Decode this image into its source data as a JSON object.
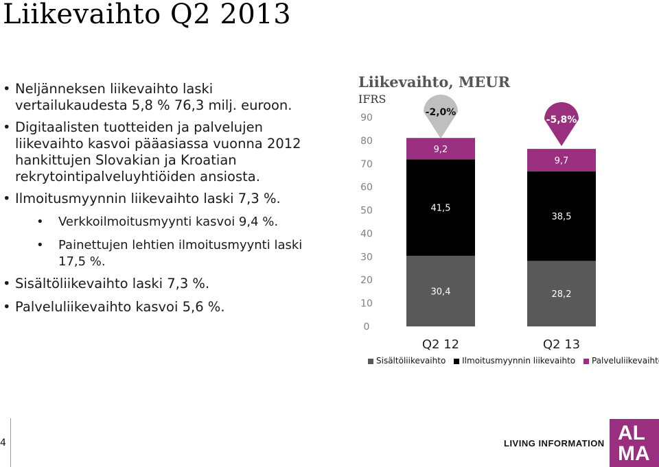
{
  "page": {
    "title": "Liikevaihto Q2 2013",
    "page_number": "4",
    "brand_text": "LIVING INFORMATION",
    "logo_text": [
      "AL",
      "MA"
    ]
  },
  "bullets": [
    {
      "level": 1,
      "text": "Neljänneksen liikevaihto laski vertailukaudesta 5,8 % 76,3 milj. euroon."
    },
    {
      "level": 1,
      "text": "Digitaalisten tuotteiden ja palvelujen liikevaihto kasvoi pääasiassa vuonna 2012 hankittujen Slovakian ja Kroatian rekrytointipalveluyhtiöiden ansiosta."
    },
    {
      "level": 1,
      "text": "Ilmoitusmyynnin liikevaihto laski 7,3 %."
    },
    {
      "level": 2,
      "text": "Verkkoilmoitusmyynti kasvoi 9,4 %."
    },
    {
      "level": 2,
      "text": "Painettujen lehtien ilmoitusmyynti laski 17,5 %."
    },
    {
      "level": 1,
      "text": "Sisältöliikevaihto laski 7,3 %."
    },
    {
      "level": 1,
      "text": "Palveluliikevaihto kasvoi 5,6 %."
    }
  ],
  "chart_data": {
    "type": "bar",
    "stacked": true,
    "title": "Liikevaihto, MEUR",
    "subtitle": "IFRS",
    "categories": [
      "Q2 12",
      "Q2 13"
    ],
    "series": [
      {
        "name": "Sisältöliikevaihto",
        "values": [
          30.4,
          28.2
        ],
        "labels": [
          "30,4",
          "28,2"
        ],
        "color": "#595959"
      },
      {
        "name": "Ilmoitusmyynnin liikevaihto",
        "values": [
          41.5,
          38.5
        ],
        "labels": [
          "41,5",
          "38,5"
        ],
        "color": "#000000"
      },
      {
        "name": "Palveluliikevaihto",
        "values": [
          9.2,
          9.7
        ],
        "labels": [
          "9,2",
          "9,7"
        ],
        "color": "#9b2f7f"
      }
    ],
    "yticks": [
      "0",
      "10",
      "20",
      "30",
      "40",
      "50",
      "60",
      "70",
      "80",
      "90"
    ],
    "ylim": [
      0,
      90
    ],
    "change_labels": [
      {
        "text": "-2,0%",
        "color": "#bfbfbf"
      },
      {
        "text": "-5,8%",
        "color": "#9b2f7f"
      }
    ],
    "legend_position": "bottom",
    "grid": false
  }
}
